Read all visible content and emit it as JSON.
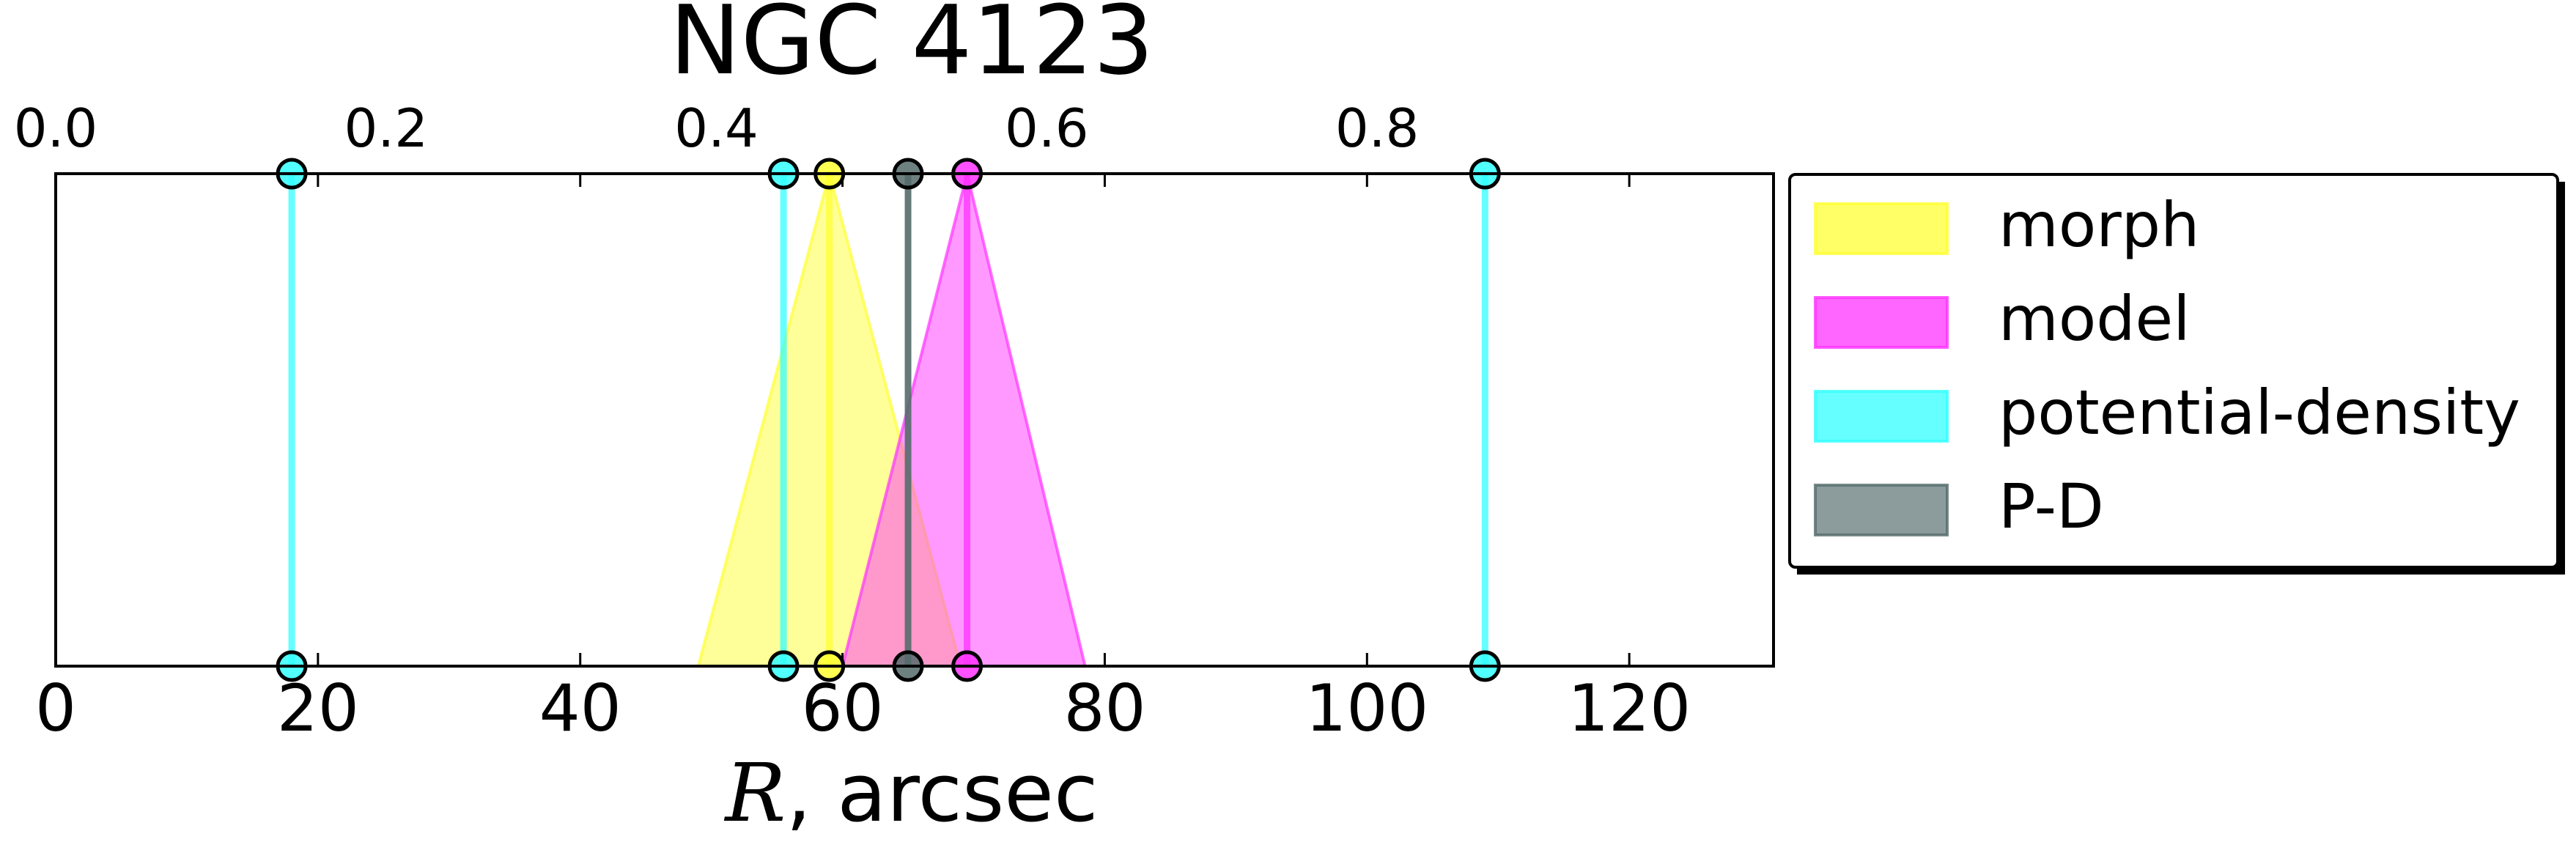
{
  "chart_data": {
    "type": "area",
    "title": "NGC 4123",
    "xlabel_symbol": "R",
    "xlabel_rest": ", arcsec",
    "xlim": [
      0,
      131
    ],
    "x_ticks": [
      0,
      20,
      40,
      60,
      80,
      100,
      120
    ],
    "top_axis": {
      "ticks": [
        "0.0",
        "0.2",
        "0.4",
        "0.6",
        "0.8"
      ],
      "tick_positions_data_units": [
        0,
        0.2,
        0.4,
        0.6,
        0.8
      ],
      "scale_data_units_at_right_edge": 1.04
    },
    "grid": false,
    "legend_placement": "outside-right",
    "series": [
      {
        "name": "morph",
        "color": "#ffff33",
        "type": "triangle",
        "center": 59,
        "min": 49,
        "max": 69
      },
      {
        "name": "model",
        "color": "#ff33ff",
        "type": "triangle",
        "center": 69.5,
        "min": 60,
        "max": 78.5
      },
      {
        "name": "potential-density",
        "color": "#33ffff",
        "type": "lines",
        "positions": [
          18,
          55.5,
          109
        ]
      },
      {
        "name": "P-D",
        "color": "#556b6b",
        "type": "lines",
        "positions": [
          65
        ]
      }
    ],
    "legend": {
      "entries": [
        "morph",
        "model",
        "potential-density",
        "P-D"
      ],
      "swatch_colors": [
        "#ffff66",
        "#ff66ff",
        "#66ffff",
        "#8c9c9c"
      ]
    }
  }
}
